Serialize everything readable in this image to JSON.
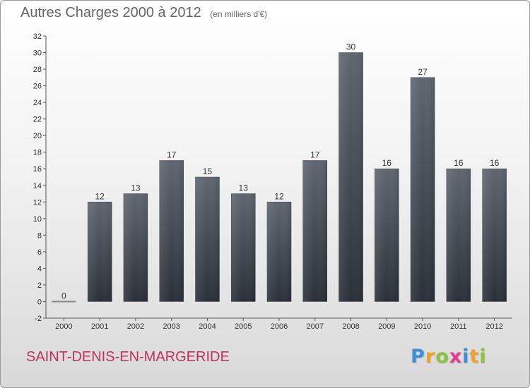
{
  "header": {
    "title": "Autres Charges 2000 à 2012",
    "unit": "(en milliers d'€)"
  },
  "footer": {
    "city": "SAINT-DENIS-EN-MARGERIDE",
    "logo_letters": [
      "P",
      "r",
      "o",
      "x",
      "i",
      "t",
      "i"
    ],
    "logo_colors": [
      "#3a8fd8",
      "#f0a22e",
      "#8ac43f",
      "#e63a8a",
      "#3a8fd8",
      "#f0a22e",
      "#8ac43f"
    ]
  },
  "colors": {
    "bar_top": "#5f6670",
    "bar_bottom": "#2a3038",
    "axis": "#555555",
    "grid_tick": "#555555",
    "city": "#c0325a"
  },
  "chart_data": {
    "type": "bar",
    "title": "Autres Charges 2000 à 2012",
    "subtitle": "(en milliers d'€)",
    "categories": [
      "2000",
      "2001",
      "2002",
      "2003",
      "2004",
      "2005",
      "2006",
      "2007",
      "2008",
      "2009",
      "2010",
      "2011",
      "2012"
    ],
    "values": [
      0,
      12,
      13,
      17,
      15,
      13,
      12,
      17,
      30,
      16,
      27,
      16,
      16
    ],
    "data_labels": [
      "0",
      "12",
      "13",
      "17",
      "15",
      "13",
      "12",
      "17",
      "30",
      "16",
      "27",
      "16",
      "16"
    ],
    "ylim": [
      -2,
      32
    ],
    "yticks": [
      -2,
      0,
      2,
      4,
      6,
      8,
      10,
      12,
      14,
      16,
      18,
      20,
      22,
      24,
      26,
      28,
      30,
      32
    ],
    "grid": false,
    "legend": "none"
  }
}
